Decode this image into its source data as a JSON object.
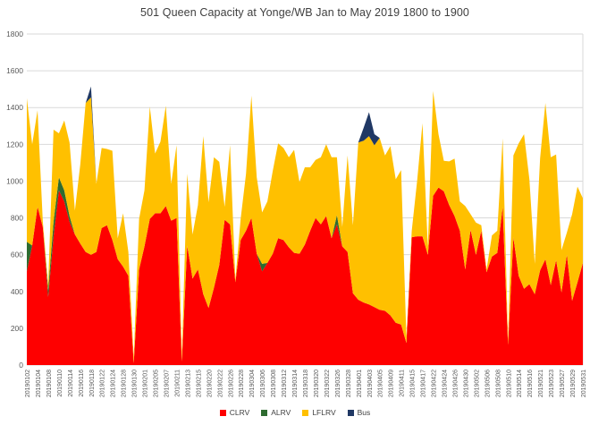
{
  "chart_data": {
    "type": "area",
    "stacked": true,
    "title": "501 Queen Capacity at Yonge/WB Jan to May 2019 1800 to 1900",
    "xlabel": "",
    "ylabel": "",
    "ylim": [
      0,
      1800
    ],
    "y_step": 200,
    "x_tick_every": 2,
    "grid": "horizontal",
    "legend_position": "bottom",
    "axis_label_color": "#595959",
    "grid_color": "#d9d9d9",
    "x": [
      "20190102",
      "20190103",
      "20190104",
      "20190107",
      "20190108",
      "20190109",
      "20190110",
      "20190111",
      "20190114",
      "20190115",
      "20190116",
      "20190117",
      "20190118",
      "20190121",
      "20190122",
      "20190123",
      "20190124",
      "20190125",
      "20190128",
      "20190129",
      "20190130",
      "20190131",
      "20190201",
      "20190204",
      "20190205",
      "20190206",
      "20190207",
      "20190208",
      "20190211",
      "20190212",
      "20190213",
      "20190214",
      "20190215",
      "20190219",
      "20190220",
      "20190221",
      "20190222",
      "20190225",
      "20190226",
      "20190227",
      "20190228",
      "20190301",
      "20190304",
      "20190305",
      "20190306",
      "20190307",
      "20190308",
      "20190311",
      "20190312",
      "20190313",
      "20190314",
      "20190315",
      "20190318",
      "20190319",
      "20190320",
      "20190321",
      "20190322",
      "20190325",
      "20190326",
      "20190327",
      "20190328",
      "20190329",
      "20190401",
      "20190402",
      "20190403",
      "20190404",
      "20190405",
      "20190408",
      "20190409",
      "20190410",
      "20190411",
      "20190412",
      "20190415",
      "20190416",
      "20190417",
      "20190418",
      "20190422",
      "20190423",
      "20190424",
      "20190425",
      "20190426",
      "20190429",
      "20190430",
      "20190501",
      "20190502",
      "20190503",
      "20190506",
      "20190507",
      "20190508",
      "20190509",
      "20190510",
      "20190513",
      "20190514",
      "20190515",
      "20190516",
      "20190517",
      "20190521",
      "20190522",
      "20190523",
      "20190524",
      "20190527",
      "20190528",
      "20190529",
      "20190530",
      "20190531"
    ],
    "series": [
      {
        "name": "CLRV",
        "color": "#fe0000",
        "values": [
          510,
          650,
          860,
          750,
          370,
          700,
          950,
          890,
          780,
          710,
          660,
          615,
          600,
          615,
          745,
          760,
          680,
          575,
          535,
          485,
          10,
          520,
          645,
          795,
          825,
          825,
          865,
          785,
          800,
          20,
          650,
          470,
          520,
          385,
          310,
          420,
          545,
          790,
          765,
          450,
          680,
          730,
          800,
          605,
          510,
          555,
          605,
          690,
          680,
          640,
          610,
          605,
          655,
          730,
          800,
          765,
          810,
          690,
          765,
          645,
          615,
          390,
          355,
          340,
          330,
          315,
          300,
          295,
          270,
          230,
          220,
          120,
          695,
          700,
          700,
          600,
          920,
          965,
          945,
          870,
          810,
          730,
          520,
          735,
          600,
          730,
          505,
          590,
          610,
          860,
          110,
          695,
          485,
          415,
          440,
          385,
          515,
          575,
          435,
          570,
          395,
          600,
          350,
          450,
          555
        ]
      },
      {
        "name": "ALRV",
        "color": "#2e6b30",
        "values": [
          160,
          0,
          0,
          0,
          40,
          80,
          70,
          60,
          30,
          0,
          0,
          0,
          0,
          0,
          0,
          0,
          0,
          0,
          0,
          0,
          0,
          0,
          0,
          0,
          0,
          0,
          0,
          0,
          0,
          0,
          0,
          0,
          0,
          0,
          0,
          0,
          0,
          0,
          0,
          0,
          0,
          0,
          0,
          0,
          40,
          0,
          0,
          0,
          0,
          0,
          0,
          0,
          0,
          0,
          0,
          0,
          0,
          0,
          50,
          0,
          0,
          0,
          0,
          0,
          0,
          0,
          0,
          0,
          0,
          0,
          0,
          0,
          0,
          0,
          0,
          0,
          0,
          0,
          0,
          0,
          0,
          0,
          0,
          0,
          0,
          0,
          0,
          0,
          0,
          0,
          0,
          0,
          0,
          0,
          0,
          0,
          0,
          0,
          0,
          0,
          0,
          0,
          0,
          0,
          0
        ]
      },
      {
        "name": "LFLRV",
        "color": "#ffc000",
        "values": [
          780,
          550,
          525,
          30,
          30,
          500,
          240,
          380,
          400,
          130,
          430,
          810,
          855,
          370,
          435,
          415,
          485,
          115,
          290,
          130,
          30,
          275,
          305,
          610,
          325,
          390,
          545,
          200,
          395,
          30,
          390,
          240,
          350,
          860,
          575,
          710,
          560,
          70,
          430,
          15,
          115,
          310,
          665,
          415,
          280,
          335,
          450,
          515,
          500,
          490,
          560,
          390,
          420,
          345,
          315,
          365,
          390,
          440,
          315,
          105,
          525,
          370,
          855,
          880,
          915,
          880,
          935,
          845,
          920,
          780,
          840,
          30,
          35,
          300,
          615,
          40,
          570,
          290,
          165,
          237,
          313,
          160,
          345,
          85,
          175,
          30,
          15,
          115,
          120,
          373,
          30,
          445,
          720,
          840,
          570,
          165,
          610,
          850,
          695,
          575,
          230,
          120,
          470,
          520,
          352
        ]
      },
      {
        "name": "Bus",
        "color": "#203864",
        "values": [
          0,
          0,
          0,
          0,
          0,
          0,
          0,
          0,
          0,
          0,
          0,
          0,
          60,
          0,
          0,
          0,
          0,
          0,
          0,
          0,
          0,
          0,
          0,
          0,
          0,
          0,
          0,
          0,
          0,
          0,
          0,
          0,
          0,
          0,
          0,
          0,
          0,
          0,
          0,
          0,
          0,
          0,
          0,
          0,
          0,
          0,
          0,
          0,
          0,
          0,
          0,
          0,
          0,
          0,
          0,
          0,
          0,
          0,
          0,
          0,
          0,
          0,
          0,
          70,
          130,
          60,
          0,
          0,
          0,
          0,
          0,
          0,
          0,
          0,
          0,
          0,
          0,
          0,
          0,
          0,
          0,
          0,
          0,
          0,
          0,
          0,
          0,
          0,
          0,
          0,
          0,
          0,
          0,
          0,
          0,
          0,
          0,
          0,
          0,
          0,
          0,
          0,
          0,
          0,
          0
        ]
      }
    ]
  }
}
